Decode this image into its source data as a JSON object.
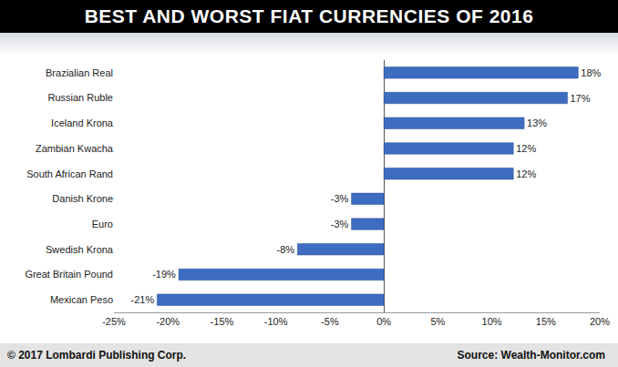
{
  "chart_data": {
    "type": "bar",
    "orientation": "horizontal",
    "title": "BEST AND WORST FIAT CURRENCIES OF 2016",
    "annotations": [
      "© 2017 Lombardi Publishing Corp.",
      "Source: Wealth-Monitor.com"
    ],
    "categories": [
      "Brazialian Real",
      "Russian Ruble",
      "Iceland Krona",
      "Zambian Kwacha",
      "South African Rand",
      "Danish Krone",
      "Euro",
      "Swedish Krona",
      "Great Britain Pound",
      "Mexican Peso"
    ],
    "values": [
      18,
      17,
      13,
      12,
      12,
      -3,
      -3,
      -8,
      -19,
      -21
    ],
    "value_labels": [
      "18%",
      "17%",
      "13%",
      "12%",
      "12%",
      "-3%",
      "-3%",
      "-8%",
      "-19%",
      "-21%"
    ],
    "data_labels": true,
    "color": "#3d6cc0",
    "xlim": [
      -25,
      20
    ],
    "xticks": [
      {
        "value": -25,
        "label": "-25%"
      },
      {
        "value": -20,
        "label": "-20%"
      },
      {
        "value": -15,
        "label": "-15%"
      },
      {
        "value": -10,
        "label": "-10%"
      },
      {
        "value": -5,
        "label": "-5%"
      },
      {
        "value": 0,
        "label": "0%"
      },
      {
        "value": 5,
        "label": "5%"
      },
      {
        "value": 10,
        "label": "10%"
      },
      {
        "value": 15,
        "label": "15%"
      },
      {
        "value": 20,
        "label": "20%"
      }
    ],
    "grid": false
  }
}
